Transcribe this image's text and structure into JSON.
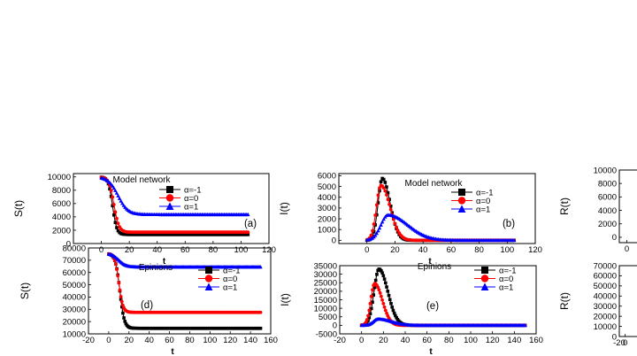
{
  "chart_data": [
    {
      "type": "line",
      "panel_label": "(a)",
      "title": "Model network",
      "xlabel": "t",
      "ylabel": "S(t)",
      "xlim": [
        -20,
        120
      ],
      "ylim": [
        0,
        10500
      ],
      "xticks": [
        0,
        20,
        40,
        60,
        80,
        100,
        120
      ],
      "yticks": [
        0,
        2000,
        4000,
        6000,
        8000,
        10000
      ],
      "xtick_labels": [
        "0",
        "20",
        "40",
        "60",
        "80",
        "100",
        "120"
      ],
      "ytick_labels": [
        "0",
        "2000",
        "4000",
        "6000",
        "8000",
        "10000"
      ],
      "legend": "top-right",
      "series": [
        {
          "name": "α=-1",
          "color": "#000000",
          "marker": "square",
          "kind": "decay",
          "start": 10000,
          "end": 1350,
          "center": 8.0,
          "width": 1.5,
          "x_max": 105
        },
        {
          "name": "α=0",
          "color": "#ff0000",
          "marker": "circle",
          "kind": "decay",
          "start": 10000,
          "end": 1700,
          "center": 9.0,
          "width": 1.8,
          "x_max": 105
        },
        {
          "name": "α=1",
          "color": "#0000ff",
          "marker": "triangle",
          "kind": "decay",
          "start": 10000,
          "end": 4350,
          "center": 12.0,
          "width": 3.5,
          "x_max": 105
        }
      ]
    },
    {
      "type": "line",
      "panel_label": "(b)",
      "title": "Model network",
      "xlabel": "t",
      "ylabel": "I(t)",
      "xlim": [
        -20,
        120
      ],
      "ylim": [
        -300,
        6200
      ],
      "xticks": [
        0,
        20,
        40,
        60,
        80,
        100,
        120
      ],
      "yticks": [
        0,
        1000,
        2000,
        3000,
        4000,
        5000,
        6000
      ],
      "xtick_labels": [
        "0",
        "20",
        "40",
        "60",
        "80",
        "100",
        "120"
      ],
      "ytick_labels": [
        "0",
        "1000",
        "2000",
        "3000",
        "4000",
        "5000",
        "6000"
      ],
      "legend": "top-right",
      "series": [
        {
          "name": "α=-1",
          "color": "#000000",
          "marker": "square",
          "kind": "peak",
          "peak_x": 11,
          "peak_y": 5750,
          "rise": 3.0,
          "decay": 5.5,
          "x_max": 105
        },
        {
          "name": "α=0",
          "color": "#ff0000",
          "marker": "circle",
          "kind": "peak",
          "peak_x": 10,
          "peak_y": 5100,
          "rise": 3.2,
          "decay": 6.5,
          "x_max": 105
        },
        {
          "name": "α=1",
          "color": "#0000ff",
          "marker": "triangle",
          "kind": "peak",
          "peak_x": 15,
          "peak_y": 2350,
          "rise": 5.0,
          "decay": 14.0,
          "x_max": 105
        }
      ]
    },
    {
      "type": "line",
      "panel_label": "",
      "title": "",
      "xlabel": "",
      "ylabel": "R(t)",
      "xlim": [
        -20,
        120
      ],
      "ylim": [
        -800,
        10000
      ],
      "xticks": [
        0
      ],
      "yticks": [
        0,
        2000,
        4000,
        6000,
        8000,
        10000
      ],
      "xtick_labels": [
        "0"
      ],
      "ytick_labels": [
        "0",
        "2000",
        "4000",
        "6000",
        "8000",
        "10000"
      ],
      "legend": "",
      "series": []
    },
    {
      "type": "line",
      "panel_label": "(d)",
      "title": "Epinions",
      "xlabel": "t",
      "ylabel": "S(t)",
      "xlim": [
        -20,
        160
      ],
      "ylim": [
        10000,
        80000
      ],
      "xticks": [
        -20,
        0,
        20,
        40,
        60,
        80,
        100,
        120,
        140,
        160
      ],
      "yticks": [
        10000,
        20000,
        30000,
        40000,
        50000,
        60000,
        70000,
        80000
      ],
      "xtick_labels": [
        "-20",
        "0",
        "20",
        "40",
        "60",
        "80",
        "100",
        "120",
        "140",
        "160"
      ],
      "ytick_labels": [
        "10000",
        "20000",
        "30000",
        "40000",
        "50000",
        "60000",
        "70000",
        "80000"
      ],
      "legend": "top-right",
      "series": [
        {
          "name": "α=-1",
          "color": "#000000",
          "marker": "square",
          "kind": "decay",
          "start": 75500,
          "end": 14500,
          "center": 11.0,
          "width": 2.2,
          "x_max": 150
        },
        {
          "name": "α=0",
          "color": "#ff0000",
          "marker": "circle",
          "kind": "decay",
          "start": 75500,
          "end": 27500,
          "center": 10.0,
          "width": 2.0,
          "x_max": 150
        },
        {
          "name": "α=1",
          "color": "#0000ff",
          "marker": "triangle",
          "kind": "decay",
          "start": 75500,
          "end": 64500,
          "center": 10.0,
          "width": 3.5,
          "x_max": 150
        }
      ]
    },
    {
      "type": "line",
      "panel_label": "(e)",
      "title": "Epinions",
      "xlabel": "t",
      "ylabel": "I(t)",
      "xlim": [
        -20,
        160
      ],
      "ylim": [
        -5000,
        35000
      ],
      "xticks": [
        -20,
        0,
        20,
        40,
        60,
        80,
        100,
        120,
        140,
        160
      ],
      "yticks": [
        -5000,
        0,
        5000,
        10000,
        15000,
        20000,
        25000,
        30000,
        35000
      ],
      "xtick_labels": [
        "-20",
        "0",
        "20",
        "40",
        "60",
        "80",
        "100",
        "120",
        "140",
        "160"
      ],
      "ytick_labels": [
        "-5000",
        "0",
        "5000",
        "10000",
        "15000",
        "20000",
        "25000",
        "30000",
        "35000"
      ],
      "legend": "top-right",
      "series": [
        {
          "name": "α=-1",
          "color": "#000000",
          "marker": "square",
          "kind": "peak",
          "peak_x": 16,
          "peak_y": 33000,
          "rise": 4.5,
          "decay": 8.0,
          "x_max": 150
        },
        {
          "name": "α=0",
          "color": "#ff0000",
          "marker": "circle",
          "kind": "peak",
          "peak_x": 12,
          "peak_y": 24500,
          "rise": 3.5,
          "decay": 7.0,
          "x_max": 150
        },
        {
          "name": "α=1",
          "color": "#0000ff",
          "marker": "triangle",
          "kind": "peak",
          "peak_x": 15,
          "peak_y": 3700,
          "rise": 4.0,
          "decay": 12.0,
          "x_max": 150
        }
      ]
    },
    {
      "type": "line",
      "panel_label": "",
      "title": "",
      "xlabel": "",
      "ylabel": "R(t)",
      "xlim": [
        -20,
        160
      ],
      "ylim": [
        0,
        70000
      ],
      "xticks": [
        -20,
        0
      ],
      "yticks": [
        0,
        10000,
        20000,
        30000,
        40000,
        50000,
        60000,
        70000
      ],
      "xtick_labels": [
        "-20",
        "0"
      ],
      "ytick_labels": [
        "0",
        "10000",
        "20000",
        "30000",
        "40000",
        "50000",
        "60000",
        "70000"
      ],
      "legend": "",
      "series": []
    }
  ]
}
